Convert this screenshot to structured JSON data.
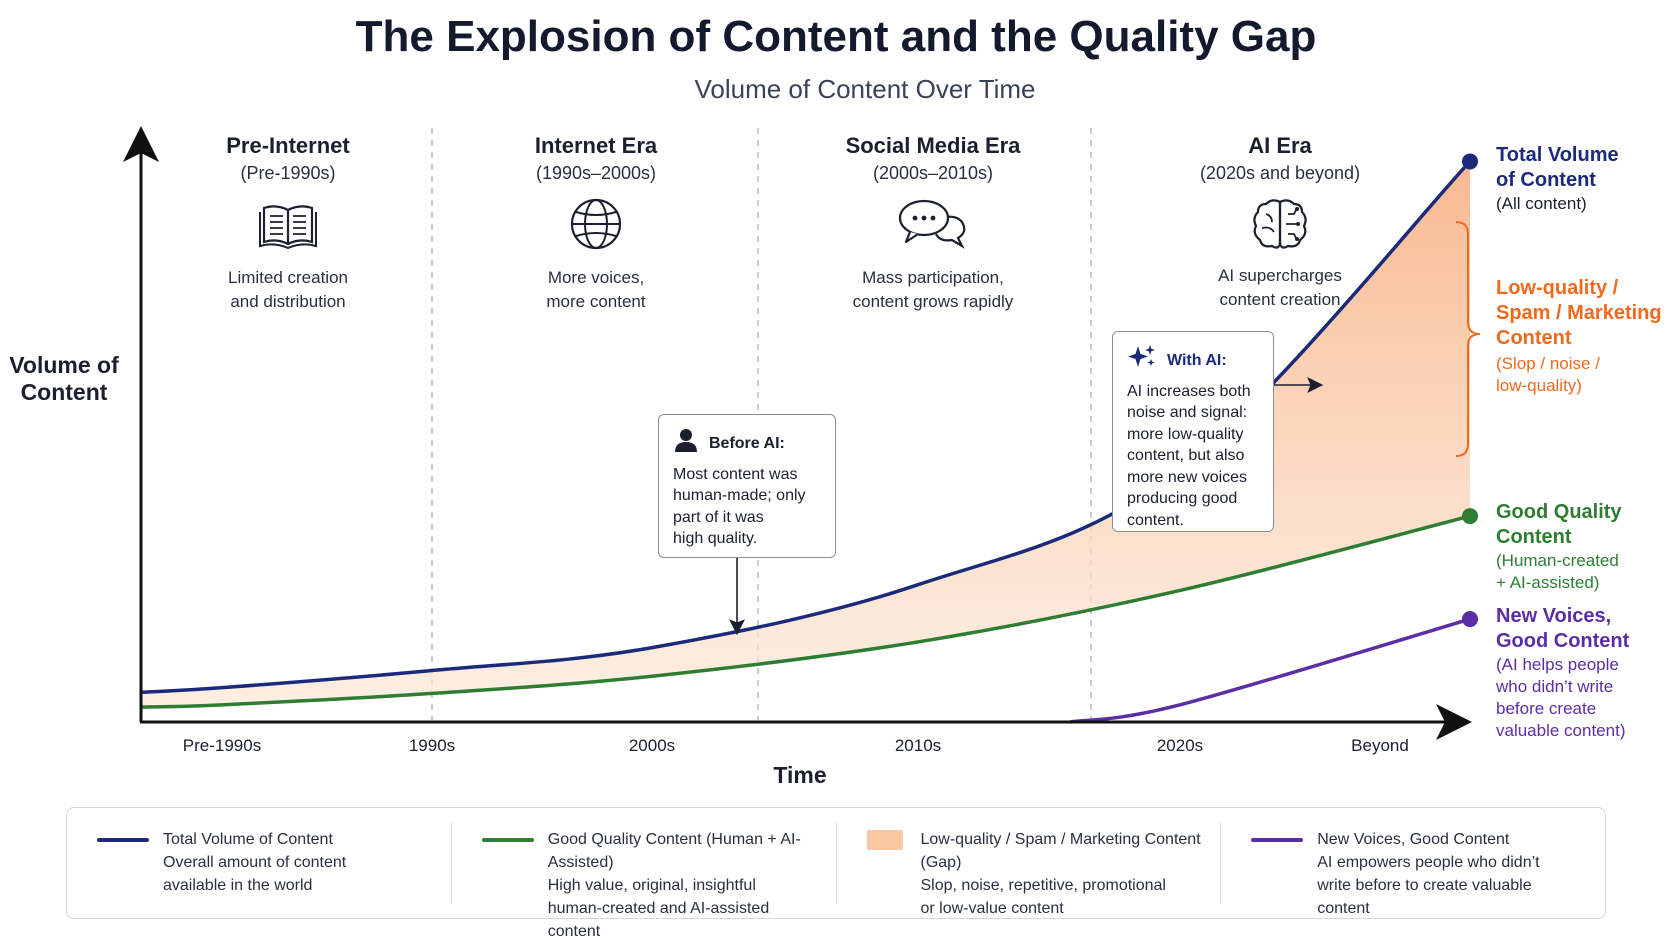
{
  "header": {
    "title": "The Explosion of Content and the Quality Gap",
    "subtitle": "Volume of Content Over Time"
  },
  "axes": {
    "ylabel_line1": "Volume of",
    "ylabel_line2": "Content",
    "xlabel": "Time"
  },
  "eras": [
    {
      "name": "Pre-Internet",
      "range": "(Pre-1990s)",
      "icon": "book-icon",
      "desc1": "Limited creation",
      "desc2": "and distribution"
    },
    {
      "name": "Internet Era",
      "range": "(1990s–2000s)",
      "icon": "globe-icon",
      "desc1": "More voices,",
      "desc2": "more content"
    },
    {
      "name": "Social Media Era",
      "range": "(2000s–2010s)",
      "icon": "chat-bubbles-icon",
      "desc1": "Mass participation,",
      "desc2": "content grows rapidly"
    },
    {
      "name": "AI Era",
      "range": "(2020s and beyond)",
      "icon": "brain-icon",
      "desc1": "AI supercharges",
      "desc2": "content creation"
    }
  ],
  "callouts": {
    "before_ai": {
      "heading": "Before AI:",
      "lines": [
        "Most content was",
        "human-made; only",
        "part of it was",
        "high quality."
      ]
    },
    "with_ai": {
      "heading": "With AI:",
      "lines": [
        "AI increases both",
        "noise and signal:",
        "more low-quality",
        "content, but also",
        "more new voices",
        "producing good",
        "content."
      ]
    }
  },
  "right_labels": {
    "total": {
      "title1": "Total Volume",
      "title2": "of Content",
      "sub1": "(All content)"
    },
    "low": {
      "title1": "Low-quality /",
      "title2": "Spam / Marketing",
      "title3": "Content",
      "sub1": "(Slop / noise /",
      "sub2": "low-quality)"
    },
    "good": {
      "title1": "Good Quality",
      "title2": "Content",
      "sub1": "(Human-created",
      "sub2": "+ AI-assisted)"
    },
    "new": {
      "title1": "New Voices,",
      "title2": "Good Content",
      "sub1": "(AI helps people",
      "sub2": "who didn’t write",
      "sub3": "before create",
      "sub4": "valuable content)"
    }
  },
  "legend": [
    {
      "title": "Total Volume of Content",
      "line1": "Overall amount of content",
      "line2": "available in the world",
      "color": "#1b2a7a",
      "kind": "line"
    },
    {
      "title": "Good Quality Content (Human + AI-Assisted)",
      "line1": "High value, original, insightful",
      "line2": "human-created and AI-assisted content",
      "color": "#2e7d32",
      "kind": "line"
    },
    {
      "title": "Low-quality / Spam / Marketing Content (Gap)",
      "line1": "Slop, noise, repetitive, promotional",
      "line2": "or low-value content",
      "color": "#f8c9a3",
      "kind": "box"
    },
    {
      "title": "New Voices, Good Content",
      "line1": "AI empowers people who didn’t",
      "line2": "write before to create valuable content",
      "color": "#5b2ea6",
      "kind": "line"
    }
  ],
  "colors": {
    "total": "#1b2a7a",
    "good": "#2e7d32",
    "gap": "#f8c9a3",
    "new": "#5b2ea6",
    "low_label": "#f06a1e",
    "axis": "#111111",
    "divider": "#b5b8c0"
  },
  "chart_data": {
    "type": "area",
    "title": "The Explosion of Content and the Quality Gap",
    "subtitle": "Volume of Content Over Time",
    "xlabel": "Time",
    "ylabel": "Volume of Content",
    "categories": [
      "Pre-1990s",
      "1990s",
      "2000s",
      "2010s",
      "2020s",
      "Beyond"
    ],
    "qualitative_y": true,
    "grid": false,
    "legend_placement": "bottom",
    "series": [
      {
        "name": "Total Volume of Content",
        "values": [
          6,
          9,
          13,
          24,
          44,
          98
        ]
      },
      {
        "name": "Good Quality Content (Human + AI-Assisted)",
        "values": [
          3,
          5,
          8,
          14,
          23,
          36
        ]
      },
      {
        "name": "New Voices, Good Content",
        "values": [
          null,
          null,
          null,
          null,
          3,
          18
        ]
      }
    ],
    "filled_gap": "Low-quality / Spam / Marketing Content (Gap)"
  }
}
